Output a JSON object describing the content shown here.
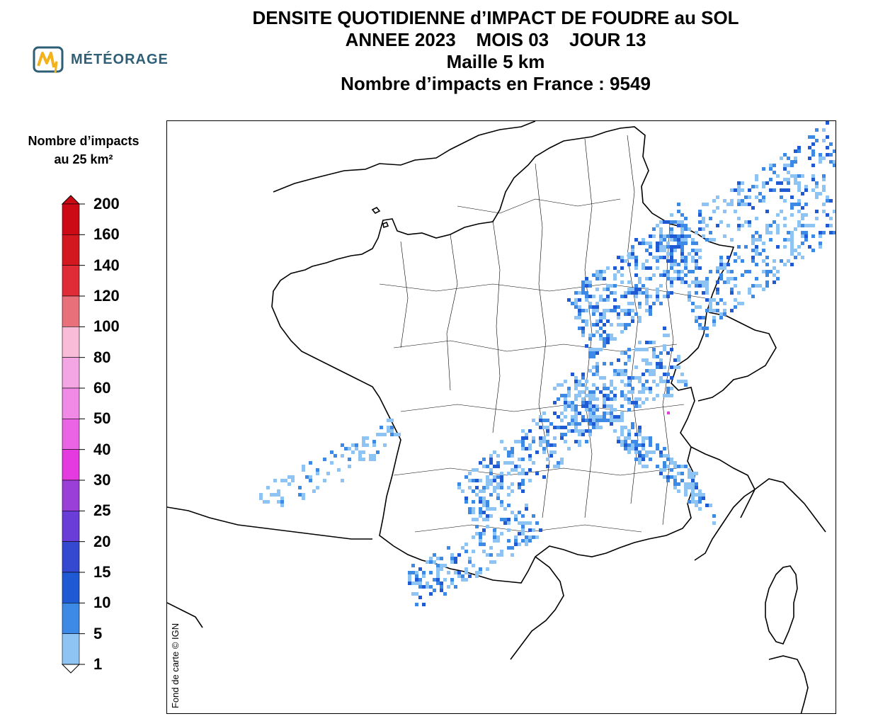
{
  "header": {
    "line1": "DENSITE QUOTIDIENNE d’IMPACT DE FOUDRE au SOL",
    "line2": "ANNEE 2023    MOIS 03    JOUR 13",
    "line3": "Maille 5 km",
    "line4": "Nombre d’impacts en France : 9549"
  },
  "logo": {
    "text": "MÉTÉORAGE",
    "icon": "meteorage-logo-icon"
  },
  "legend": {
    "title_line1": "Nombre d’impacts",
    "title_line2": "au 25 km²",
    "labels": [
      "200",
      "160",
      "140",
      "120",
      "100",
      "80",
      "60",
      "50",
      "40",
      "30",
      "25",
      "20",
      "15",
      "10",
      "5",
      "1"
    ],
    "colors": [
      "#cc0a16",
      "#d41820",
      "#e02c36",
      "#e8707a",
      "#f8bcd8",
      "#f4a6e4",
      "#f08ae6",
      "#ec64e6",
      "#e43ae0",
      "#9a40d8",
      "#6a3cd8",
      "#3448d0",
      "#1f5ad4",
      "#3c8ae6",
      "#8ec4f4"
    ]
  },
  "map": {
    "credit": "Fond de carte © IGN",
    "strike_color_light": "#8ec4f4",
    "strike_color_medium": "#3c8ae6",
    "strike_color_dark": "#1f5ad4"
  }
}
